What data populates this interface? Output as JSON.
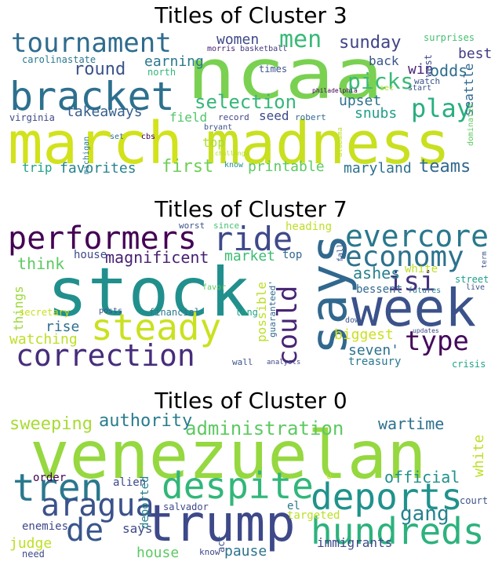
{
  "panels": [
    {
      "title": "Titles of Cluster 3",
      "words": [
        {
          "text": "march",
          "color": "#d2e21b"
        },
        {
          "text": "madness",
          "color": "#c8e020"
        },
        {
          "text": "ncaa",
          "color": "#7ad151"
        },
        {
          "text": "bracket",
          "color": "#2d708e"
        },
        {
          "text": "tournament",
          "color": "#2f6c8e"
        },
        {
          "text": "men",
          "color": "#38b977"
        },
        {
          "text": "play",
          "color": "#29af7f"
        },
        {
          "text": "picks",
          "color": "#3bbb75"
        },
        {
          "text": "selection",
          "color": "#35b779"
        },
        {
          "text": "teams",
          "color": "#31688e"
        },
        {
          "text": "first",
          "color": "#6ece58"
        },
        {
          "text": "favorites",
          "color": "#26828e"
        },
        {
          "text": "round",
          "color": "#3b528b"
        },
        {
          "text": "sunday",
          "color": "#414487"
        },
        {
          "text": "women",
          "color": "#3e4989"
        },
        {
          "text": "takeaways",
          "color": "#355f8d"
        },
        {
          "text": "earning",
          "color": "#2a788e"
        },
        {
          "text": "upset",
          "color": "#2c728e"
        },
        {
          "text": "snubs",
          "color": "#1f9e89"
        },
        {
          "text": "win",
          "color": "#482677"
        },
        {
          "text": "back",
          "color": "#39568c"
        },
        {
          "text": "best",
          "color": "#433e85"
        },
        {
          "text": "odds",
          "color": "#2e6e8e"
        },
        {
          "text": "seattle",
          "color": "#31688e"
        },
        {
          "text": "printable",
          "color": "#5ec962"
        },
        {
          "text": "maryland",
          "color": "#2c728e"
        },
        {
          "text": "trip",
          "color": "#20a386"
        },
        {
          "text": "field",
          "color": "#52c569"
        },
        {
          "text": "seed",
          "color": "#3e4a89"
        },
        {
          "text": "top",
          "color": "#addc30"
        },
        {
          "text": "record",
          "color": "#404688"
        },
        {
          "text": "robert",
          "color": "#31688e"
        },
        {
          "text": "carolina",
          "color": "#2a788e"
        },
        {
          "text": "state",
          "color": "#2a788e"
        },
        {
          "text": "north",
          "color": "#32b67a"
        },
        {
          "text": "morris",
          "color": "#482173"
        },
        {
          "text": "basketball",
          "color": "#453781"
        },
        {
          "text": "times",
          "color": "#3b528b"
        },
        {
          "text": "virginia",
          "color": "#3e4989"
        },
        {
          "text": "michigan",
          "color": "#2a788e"
        },
        {
          "text": "bryant",
          "color": "#3b528b"
        },
        {
          "text": "set",
          "color": "#2d708e"
        },
        {
          "text": "cbs",
          "color": "#440154"
        },
        {
          "text": "challenge",
          "color": "#b5de2b"
        },
        {
          "text": "know",
          "color": "#21918c"
        },
        {
          "text": "philadelphia",
          "color": "#440154"
        },
        {
          "text": "alabama",
          "color": "#bddf26"
        },
        {
          "text": "sec",
          "color": "#b5de2b"
        },
        {
          "text": "start",
          "color": "#3b528b"
        },
        {
          "text": "watch",
          "color": "#3b528b"
        },
        {
          "text": "west",
          "color": "#3e4989"
        },
        {
          "text": "dominates",
          "color": "#5ec962"
        },
        {
          "text": "surprises",
          "color": "#44bf70"
        }
      ]
    },
    {
      "title": "Titles of Cluster 7",
      "words": [
        {
          "text": "stock",
          "color": "#21908d"
        },
        {
          "text": "says",
          "color": "#31688e"
        },
        {
          "text": "week",
          "color": "#3b528b"
        },
        {
          "text": "performers",
          "color": "#440154"
        },
        {
          "text": "ride",
          "color": "#3e4989"
        },
        {
          "text": "evercore",
          "color": "#2a788e"
        },
        {
          "text": "economy",
          "color": "#2c728e"
        },
        {
          "text": "isi",
          "color": "#46327e"
        },
        {
          "text": "steady",
          "color": "#cae11f"
        },
        {
          "text": "correction",
          "color": "#472d7b"
        },
        {
          "text": "type",
          "color": "#46085c"
        },
        {
          "text": "could",
          "color": "#482475"
        },
        {
          "text": "magnificent",
          "color": "#482173"
        },
        {
          "text": "market",
          "color": "#3dbc74"
        },
        {
          "text": "think",
          "color": "#5ec962"
        },
        {
          "text": "house",
          "color": "#3e4989"
        },
        {
          "text": "top",
          "color": "#31688e"
        },
        {
          "text": "things",
          "color": "#9cd93b"
        },
        {
          "text": "rise",
          "color": "#2e6f8e"
        },
        {
          "text": "watching",
          "color": "#bddf26"
        },
        {
          "text": "secretary",
          "color": "#c8e020"
        },
        {
          "text": "posts",
          "color": "#3b528b"
        },
        {
          "text": "financial",
          "color": "#2a788e"
        },
        {
          "text": "long",
          "color": "#20a386"
        },
        {
          "text": "possible",
          "color": "#bddf26"
        },
        {
          "text": "guaranteed'",
          "color": "#31688e"
        },
        {
          "text": "ashes",
          "color": "#26828e"
        },
        {
          "text": "bessent",
          "color": "#31688e"
        },
        {
          "text": "white",
          "color": "#bddf26"
        },
        {
          "text": "biggest",
          "color": "#cae11f"
        },
        {
          "text": "seven'",
          "color": "#2c728e"
        },
        {
          "text": "treasury",
          "color": "#2a788e"
        },
        {
          "text": "heading",
          "color": "#bddf26"
        },
        {
          "text": "worst",
          "color": "#3b528b"
        },
        {
          "text": "since",
          "color": "#44bf70"
        },
        {
          "text": "favor",
          "color": "#5ec962"
        },
        {
          "text": "street",
          "color": "#1f9e89"
        },
        {
          "text": "live",
          "color": "#3b528b"
        },
        {
          "text": "futures",
          "color": "#2a788e"
        },
        {
          "text": "updates",
          "color": "#3e4989"
        },
        {
          "text": "dow",
          "color": "#3b528b"
        },
        {
          "text": "wall",
          "color": "#3b528b"
        },
        {
          "text": "analysts",
          "color": "#3e4989"
        },
        {
          "text": "crisis",
          "color": "#20a386"
        },
        {
          "text": "fall",
          "color": "#3b528b"
        },
        {
          "text": "term",
          "color": "#3b528b"
        }
      ]
    },
    {
      "title": "Titles of Cluster 0",
      "words": [
        {
          "text": "venezuelan",
          "color": "#95d840"
        },
        {
          "text": "trump",
          "color": "#3e4989"
        },
        {
          "text": "deports",
          "color": "#20928c"
        },
        {
          "text": "despite",
          "color": "#32b67a"
        },
        {
          "text": "tren",
          "color": "#2a788e"
        },
        {
          "text": "aragua",
          "color": "#3b528b"
        },
        {
          "text": "hundreds",
          "color": "#2db27d"
        },
        {
          "text": "de",
          "color": "#39568c"
        },
        {
          "text": "gang",
          "color": "#26828e"
        },
        {
          "text": "administration",
          "color": "#5ec962"
        },
        {
          "text": "authority",
          "color": "#287c8e"
        },
        {
          "text": "sweeping",
          "color": "#a8db34"
        },
        {
          "text": "wartime",
          "color": "#2d708e"
        },
        {
          "text": "official",
          "color": "#21918c"
        },
        {
          "text": "white",
          "color": "#bddf26"
        },
        {
          "text": "says",
          "color": "#3e4989"
        },
        {
          "text": "house",
          "color": "#5ec962"
        },
        {
          "text": "pause",
          "color": "#2c728e"
        },
        {
          "text": "judge",
          "color": "#bddf26"
        },
        {
          "text": "enemies",
          "color": "#3e4989"
        },
        {
          "text": "alien",
          "color": "#3e4989"
        },
        {
          "text": "order",
          "color": "#440154"
        },
        {
          "text": "deported",
          "color": "#26828e"
        },
        {
          "text": "salvador",
          "color": "#3e4989"
        },
        {
          "text": "el",
          "color": "#2a788e"
        },
        {
          "text": "act",
          "color": "#3b528b"
        },
        {
          "text": "court",
          "color": "#3b528b"
        },
        {
          "text": "immigrants",
          "color": "#3e4989"
        },
        {
          "text": "targeted",
          "color": "#bddf26"
        },
        {
          "text": "know",
          "color": "#3e4989"
        },
        {
          "text": "need",
          "color": "#3e4989"
        },
        {
          "text": "u",
          "color": "#bddf26"
        }
      ]
    }
  ]
}
